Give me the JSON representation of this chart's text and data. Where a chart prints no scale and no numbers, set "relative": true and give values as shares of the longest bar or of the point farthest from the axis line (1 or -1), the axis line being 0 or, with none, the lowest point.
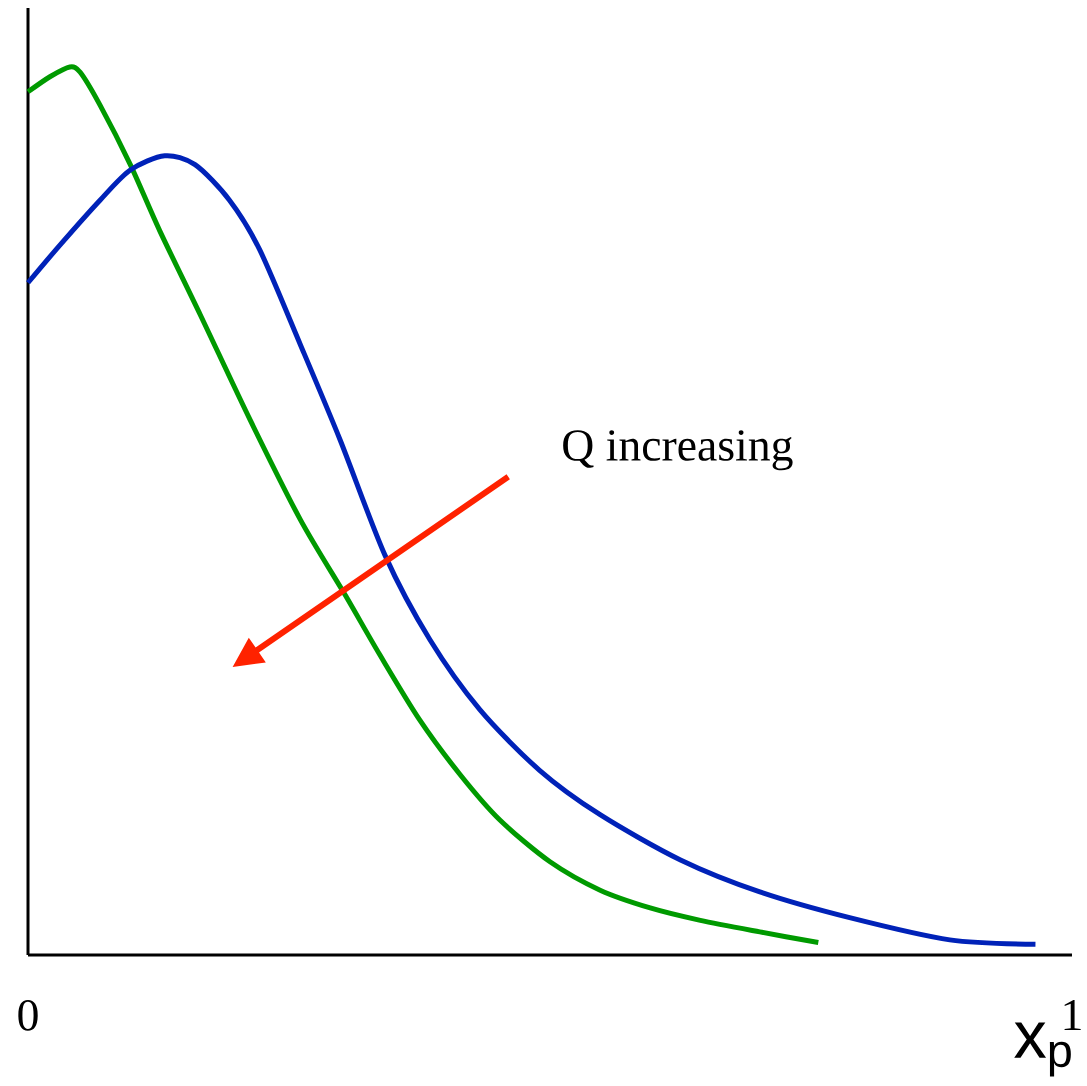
{
  "chart_data": {
    "type": "line",
    "relative": true,
    "xlabel": "x$_{p}$",
    "tick_labels": "x",
    "xlim": [
      0,
      1
    ],
    "xticks": [
      0,
      1
    ],
    "annotations": [
      "Q increasing"
    ],
    "series": [
      {
        "color": "#009a00",
        "x": [
          0,
          0.021,
          0.04,
          0.05,
          0.069,
          0.098,
          0.126,
          0.165,
          0.213,
          0.261,
          0.304,
          0.337,
          0.375,
          0.414,
          0.452,
          0.5,
          0.548,
          0.596,
          0.644,
          0.701,
          0.757
        ],
        "values": [
          0.972,
          0.989,
          1.0,
          0.994,
          0.957,
          0.89,
          0.816,
          0.721,
          0.602,
          0.49,
          0.405,
          0.338,
          0.265,
          0.203,
          0.152,
          0.105,
          0.073,
          0.053,
          0.039,
          0.026,
          0.014
        ]
      },
      {
        "color": "#0022b8",
        "x": [
          0,
          0.031,
          0.069,
          0.098,
          0.131,
          0.16,
          0.193,
          0.222,
          0.261,
          0.299,
          0.342,
          0.385,
          0.433,
          0.49,
          0.548,
          0.625,
          0.701,
          0.787,
          0.883,
          0.965
        ],
        "values": [
          0.757,
          0.8,
          0.85,
          0.884,
          0.9,
          0.89,
          0.85,
          0.794,
          0.687,
          0.58,
          0.45,
          0.355,
          0.276,
          0.208,
          0.158,
          0.107,
          0.071,
          0.042,
          0.017,
          0.012
        ]
      }
    ]
  }
}
